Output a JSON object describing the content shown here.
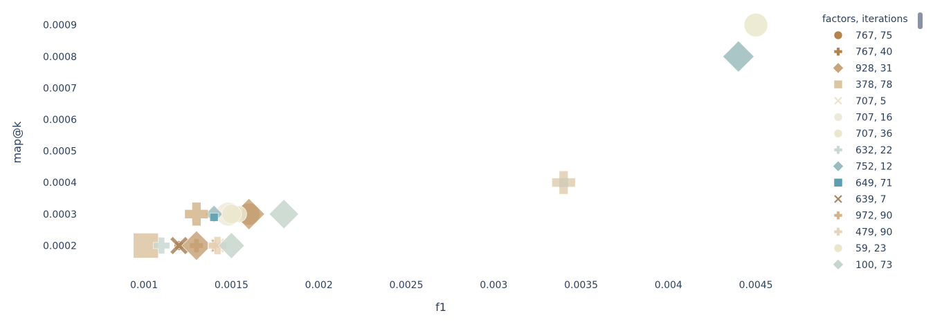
{
  "chart_data": {
    "type": "scatter",
    "xlabel": "f1",
    "ylabel": "map@k",
    "xlim": [
      0.00075,
      0.00465
    ],
    "ylim": [
      0.000135,
      0.00094
    ],
    "x_ticks": [
      0.001,
      0.0015,
      0.002,
      0.0025,
      0.003,
      0.0035,
      0.004,
      0.0045
    ],
    "x_tick_labels": [
      "0.001",
      "0.0015",
      "0.002",
      "0.0025",
      "0.003",
      "0.0035",
      "0.004",
      "0.0045"
    ],
    "y_ticks": [
      0.0002,
      0.0003,
      0.0004,
      0.0005,
      0.0006,
      0.0007,
      0.0008,
      0.0009
    ],
    "y_tick_labels": [
      "0.0002",
      "0.0003",
      "0.0004",
      "0.0005",
      "0.0006",
      "0.0007",
      "0.0008",
      "0.0009"
    ],
    "grid": false,
    "legend_title": "factors, iterations",
    "legend_position": "right",
    "series": [
      {
        "name": "767, 75",
        "symbol": "circle",
        "color": "#b5834a",
        "points": [
          {
            "x": 0.0016,
            "y": 0.0003,
            "s": 32
          },
          {
            "x": 0.0012,
            "y": 0.0002,
            "s": 14
          }
        ]
      },
      {
        "name": "767, 40",
        "symbol": "cross",
        "color": "#b5834a",
        "points": [
          {
            "x": 0.0013,
            "y": 0.0002,
            "s": 20
          }
        ]
      },
      {
        "name": "928, 31",
        "symbol": "diamond",
        "color": "#c9a47a",
        "points": [
          {
            "x": 0.0013,
            "y": 0.0002,
            "s": 34
          },
          {
            "x": 0.0016,
            "y": 0.0003,
            "s": 36
          }
        ]
      },
      {
        "name": "378, 78",
        "symbol": "square",
        "color": "#dcc6a2",
        "points": [
          {
            "x": 0.00101,
            "y": 0.0002,
            "s": 36
          },
          {
            "x": 0.00152,
            "y": 0.0003,
            "s": 20
          }
        ]
      },
      {
        "name": "707, 5",
        "symbol": "x",
        "color": "#ece3c9",
        "points": [
          {
            "x": 0.00142,
            "y": 0.0002,
            "s": 22
          }
        ]
      },
      {
        "name": "707, 16",
        "symbol": "circle",
        "color": "#eeeadb",
        "points": [
          {
            "x": 0.00148,
            "y": 0.0003,
            "s": 34
          }
        ]
      },
      {
        "name": "707, 36",
        "symbol": "circle",
        "color": "#ebe7cc",
        "points": [
          {
            "x": 0.0045,
            "y": 0.0009,
            "s": 34
          },
          {
            "x": 0.00154,
            "y": 0.0003,
            "s": 24
          }
        ]
      },
      {
        "name": "632, 22",
        "symbol": "cross",
        "color": "#c9d8d2",
        "points": [
          {
            "x": 0.0011,
            "y": 0.0002,
            "s": 24
          },
          {
            "x": 0.0034,
            "y": 0.0004,
            "s": 32
          }
        ]
      },
      {
        "name": "752, 12",
        "symbol": "diamond",
        "color": "#9bbcbd",
        "points": [
          {
            "x": 0.0044,
            "y": 0.0008,
            "s": 36
          },
          {
            "x": 0.0014,
            "y": 0.0003,
            "s": 20
          }
        ]
      },
      {
        "name": "649, 71",
        "symbol": "square",
        "color": "#5b9fb0",
        "points": [
          {
            "x": 0.0034,
            "y": 0.0004,
            "s": 14
          },
          {
            "x": 0.0014,
            "y": 0.00029,
            "s": 12
          }
        ]
      },
      {
        "name": "639, 7",
        "symbol": "x",
        "color": "#a6855e",
        "points": [
          {
            "x": 0.0012,
            "y": 0.0002,
            "s": 26
          }
        ]
      },
      {
        "name": "972, 90",
        "symbol": "cross",
        "color": "#d4b58b",
        "points": [
          {
            "x": 0.0014,
            "y": 0.0002,
            "s": 18
          },
          {
            "x": 0.0013,
            "y": 0.0003,
            "s": 34
          }
        ]
      },
      {
        "name": "479, 90",
        "symbol": "cross",
        "color": "#e8d4b8",
        "points": [
          {
            "x": 0.00142,
            "y": 0.0002,
            "s": 26
          },
          {
            "x": 0.0034,
            "y": 0.0004,
            "s": 34
          }
        ]
      },
      {
        "name": "59, 23",
        "symbol": "circle",
        "color": "#ece6cf",
        "points": [
          {
            "x": 0.0015,
            "y": 0.0003,
            "s": 28
          }
        ]
      },
      {
        "name": "100, 73",
        "symbol": "diamond",
        "color": "#c7d6cd",
        "points": [
          {
            "x": 0.0015,
            "y": 0.0002,
            "s": 30
          },
          {
            "x": 0.0018,
            "y": 0.0003,
            "s": 34
          }
        ]
      }
    ]
  },
  "legend": {
    "scrollbar_color": "#8a93a6"
  }
}
